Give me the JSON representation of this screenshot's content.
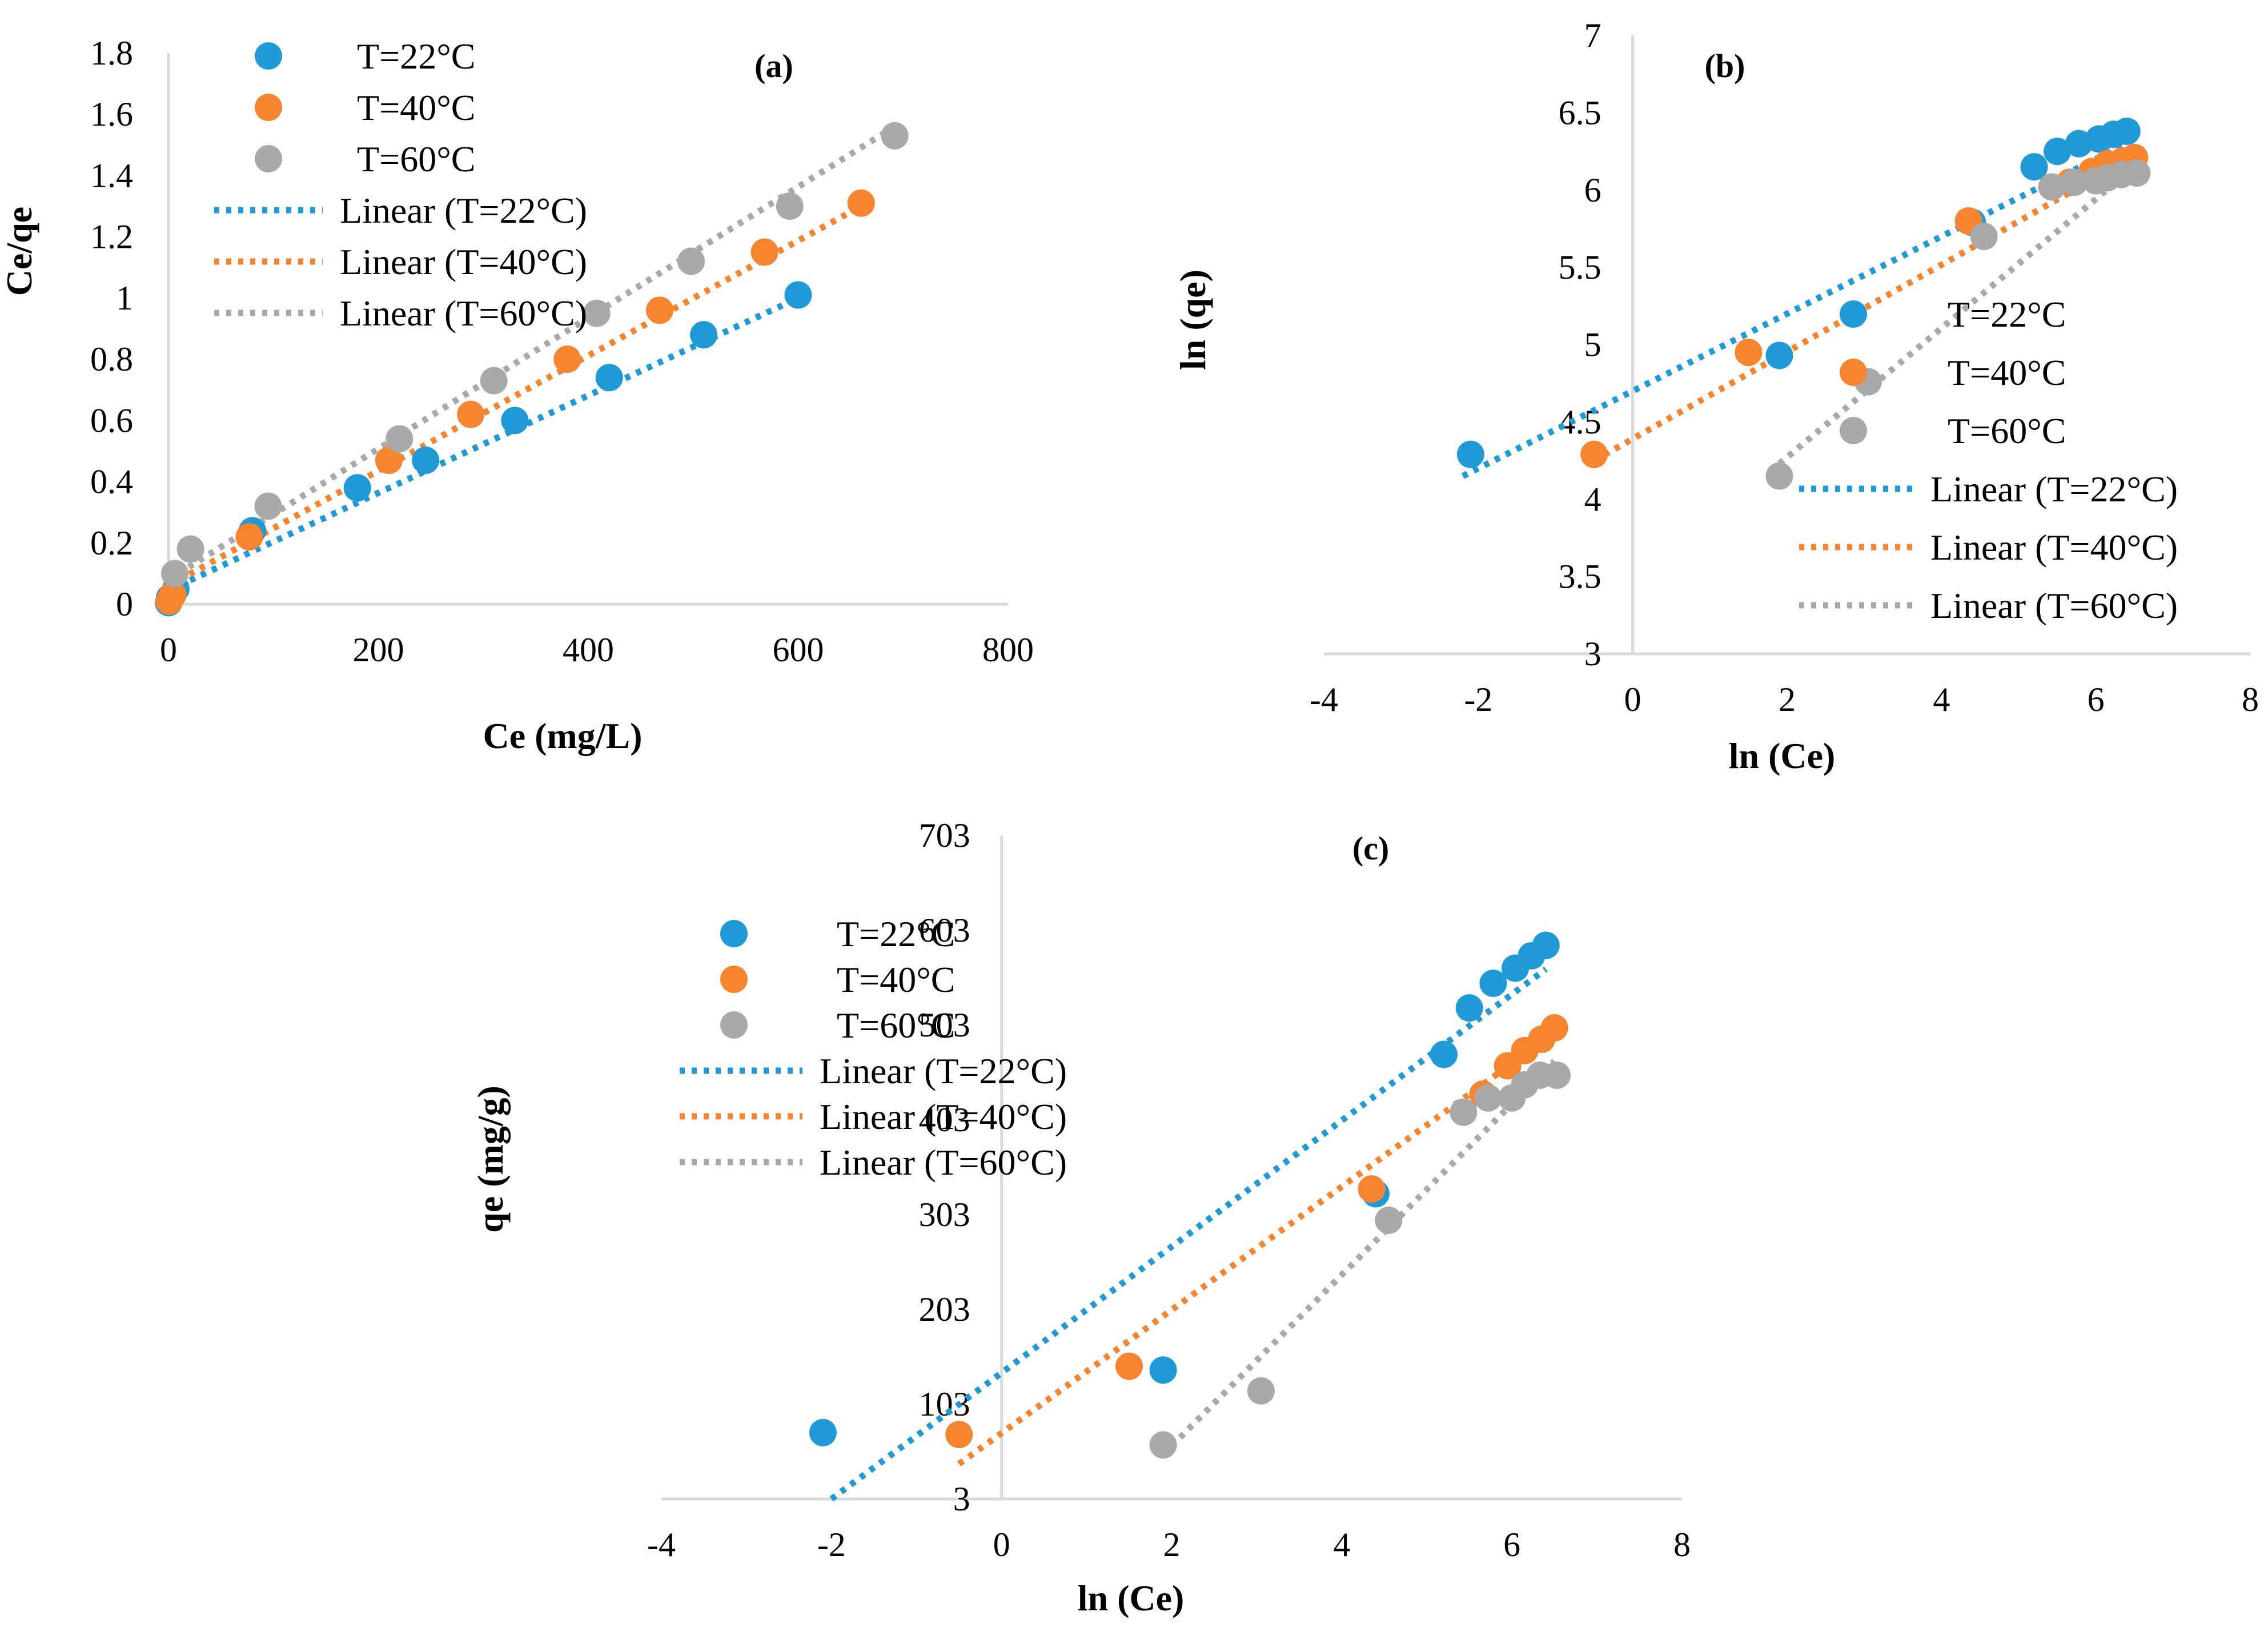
{
  "colors": {
    "t22": "#1f9ad6",
    "t40": "#f7842f",
    "t60": "#a9a9a9"
  },
  "chart_data": [
    {
      "id": "a",
      "type": "scatter",
      "title": "(a)",
      "xlabel": "Ce (mg/L)",
      "ylabel": "Ce/qe",
      "xlim": [
        0,
        800
      ],
      "ylim": [
        0,
        1.8
      ],
      "xticks": [
        0,
        200,
        400,
        600,
        800
      ],
      "yticks": [
        0,
        0.2,
        0.4,
        0.6,
        0.8,
        1,
        1.2,
        1.4,
        1.6,
        1.8
      ],
      "xtick_labels": [
        "0",
        "200",
        "400",
        "600",
        "800"
      ],
      "ytick_labels": [
        "0",
        "0.2",
        "0.4",
        "0.6",
        "0.8",
        "1",
        "1.2",
        "1.4",
        "1.6",
        "1.8"
      ],
      "legend_position": "top-left",
      "legend": [
        "T=22°C",
        "T=40°C",
        "T=60°C",
        "Linear (T=22°C)",
        "Linear (T=40°C)",
        "Linear (T=60°C)"
      ],
      "series": [
        {
          "name": "T=22°C",
          "color_key": "t22",
          "x": [
            0.1,
            1,
            7,
            80,
            180,
            245,
            330,
            420,
            510,
            600
          ],
          "y": [
            0.005,
            0.02,
            0.05,
            0.24,
            0.38,
            0.47,
            0.6,
            0.74,
            0.88,
            1.01
          ],
          "fit": {
            "x": [
              0,
              600
            ],
            "y": [
              0.045,
              1.0
            ]
          }
        },
        {
          "name": "T=40°C",
          "color_key": "t40",
          "x": [
            0.6,
            4,
            77,
            210,
            288,
            380,
            468,
            568,
            660
          ],
          "y": [
            0.01,
            0.03,
            0.22,
            0.47,
            0.62,
            0.8,
            0.96,
            1.15,
            1.31
          ],
          "fit": {
            "x": [
              0,
              660
            ],
            "y": [
              0.06,
              1.3
            ]
          }
        },
        {
          "name": "T=60°C",
          "color_key": "t60",
          "x": [
            6,
            21,
            95,
            220,
            310,
            408,
            498,
            592,
            692
          ],
          "y": [
            0.1,
            0.18,
            0.32,
            0.54,
            0.73,
            0.95,
            1.12,
            1.3,
            1.53
          ],
          "fit": {
            "x": [
              0,
              692
            ],
            "y": [
              0.08,
              1.56
            ]
          }
        }
      ]
    },
    {
      "id": "b",
      "type": "scatter",
      "title": "(b)",
      "xlabel": "ln (Ce)",
      "ylabel": "ln (qe)",
      "xlim": [
        -4,
        8
      ],
      "ylim": [
        3,
        7
      ],
      "xticks": [
        -4,
        -2,
        0,
        2,
        4,
        6,
        8
      ],
      "yticks": [
        3,
        3.5,
        4,
        4.5,
        5,
        5.5,
        6,
        6.5,
        7
      ],
      "xtick_labels": [
        "-4",
        "-2",
        "0",
        "2",
        "4",
        "6",
        "8"
      ],
      "ytick_labels": [
        "3",
        "3.5",
        "4",
        "4.5",
        "5",
        "5.5",
        "6",
        "6.5",
        "7"
      ],
      "legend_position": "right",
      "legend": [
        "T=22°C",
        "T=40°C",
        "T=60°C",
        "Linear (T=22°C)",
        "Linear (T=40°C)",
        "Linear (T=60°C)"
      ],
      "series": [
        {
          "name": "T=22°C",
          "color_key": "t22",
          "x": [
            -2.1,
            1.9,
            4.4,
            5.2,
            5.5,
            5.78,
            6.04,
            6.23,
            6.4
          ],
          "y": [
            4.29,
            4.93,
            5.79,
            6.15,
            6.25,
            6.3,
            6.33,
            6.36,
            6.38
          ],
          "fit": {
            "x": [
              -2.2,
              6.4
            ],
            "y": [
              4.15,
              6.3
            ]
          }
        },
        {
          "name": "T=40°C",
          "color_key": "t40",
          "x": [
            -0.5,
            1.5,
            4.35,
            5.66,
            5.95,
            6.15,
            6.35,
            6.5
          ],
          "y": [
            4.29,
            4.95,
            5.8,
            6.05,
            6.12,
            6.17,
            6.19,
            6.21
          ],
          "fit": {
            "x": [
              -0.5,
              6.5
            ],
            "y": [
              4.25,
              6.22
            ]
          }
        },
        {
          "name": "T=60°C",
          "color_key": "t60",
          "x": [
            1.9,
            3.05,
            4.55,
            5.43,
            5.72,
            6.0,
            6.15,
            6.33,
            6.53
          ],
          "y": [
            4.15,
            4.76,
            5.7,
            6.02,
            6.05,
            6.06,
            6.08,
            6.1,
            6.11
          ],
          "fit": {
            "x": [
              1.9,
              6.5
            ],
            "y": [
              4.23,
              6.15
            ]
          }
        }
      ]
    },
    {
      "id": "c",
      "type": "scatter",
      "title": "(c)",
      "xlabel": "ln (Ce)",
      "ylabel": "qe (mg/g)",
      "xlim": [
        -4,
        8
      ],
      "ylim": [
        3,
        703
      ],
      "xticks": [
        -4,
        -2,
        0,
        2,
        4,
        6,
        8
      ],
      "yticks": [
        3,
        103,
        203,
        303,
        403,
        503,
        603,
        703
      ],
      "xtick_labels": [
        "-4",
        "-2",
        "0",
        "2",
        "4",
        "6",
        "8"
      ],
      "ytick_labels": [
        "3",
        "103",
        "203",
        "303",
        "403",
        "503",
        "603",
        "703"
      ],
      "legend_position": "top-left",
      "legend": [
        "T=22°C",
        "T=40°C",
        "T=60°C",
        "Linear (T=22°C)",
        "Linear (T=40°C)",
        "Linear (T=60°C)"
      ],
      "series": [
        {
          "name": "T=22°C",
          "color_key": "t22",
          "x": [
            -2.1,
            1.9,
            4.4,
            5.2,
            5.5,
            5.78,
            6.04,
            6.23,
            6.4
          ],
          "y": [
            73,
            139,
            325,
            472,
            521,
            547,
            563,
            576,
            587
          ],
          "fit": {
            "x": [
              -2.0,
              6.4
            ],
            "y": [
              3,
              562
            ]
          }
        },
        {
          "name": "T=40°C",
          "color_key": "t40",
          "x": [
            -0.5,
            1.5,
            4.35,
            5.66,
            5.95,
            6.15,
            6.35,
            6.5
          ],
          "y": [
            71,
            143,
            330,
            430,
            460,
            476,
            488,
            500
          ],
          "fit": {
            "x": [
              -0.5,
              6.5
            ],
            "y": [
              40,
              495
            ]
          }
        },
        {
          "name": "T=60°C",
          "color_key": "t60",
          "x": [
            1.9,
            3.05,
            4.55,
            5.43,
            5.72,
            6.0,
            6.15,
            6.33,
            6.53
          ],
          "y": [
            60,
            117,
            297,
            411,
            426,
            426,
            440,
            450,
            450
          ],
          "fit": {
            "x": [
              1.9,
              6.5
            ],
            "y": [
              50,
              465
            ]
          }
        }
      ]
    }
  ]
}
